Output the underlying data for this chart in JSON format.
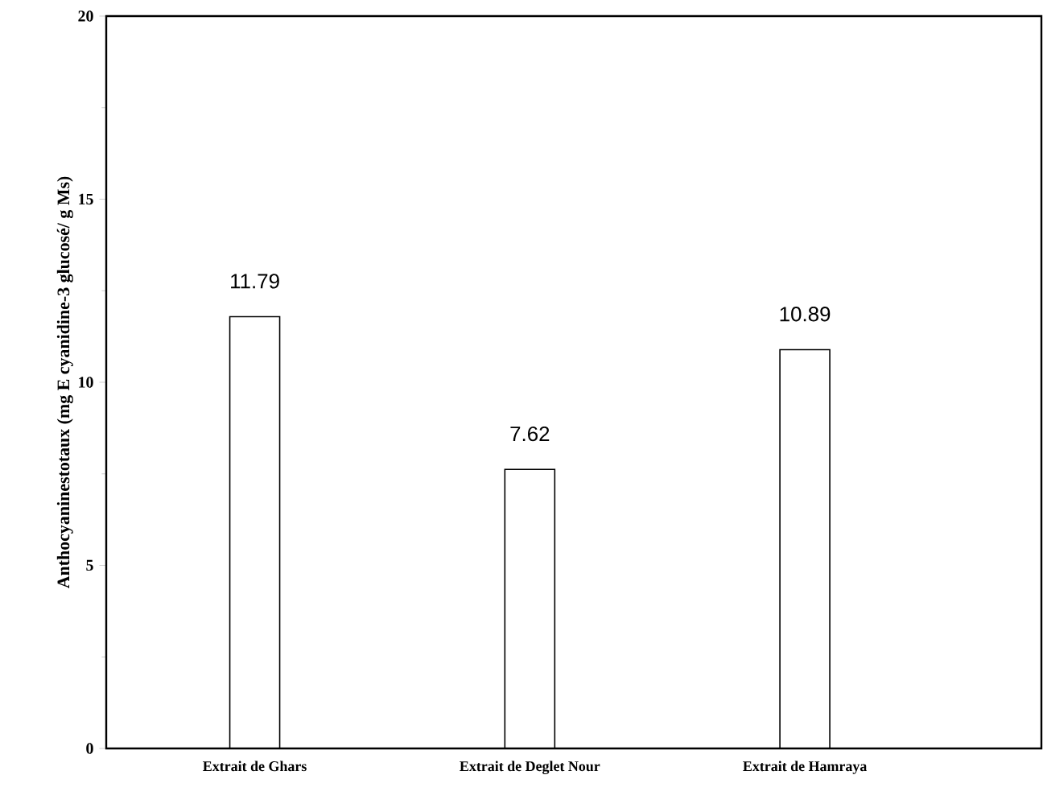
{
  "chart_data": {
    "type": "bar",
    "ylabel": "Anthocyaninestotaux (mg E cyanidine-3 glucosé/ g Ms)",
    "categories": [
      "Extrait de Ghars",
      "Extrait de Deglet Nour",
      "Extrait de Hamraya"
    ],
    "values": [
      11.79,
      7.62,
      10.89
    ],
    "colors": [
      "#000000",
      "#000000",
      "#000000"
    ],
    "ylim": [
      0,
      20
    ],
    "yticks": [
      0,
      5,
      10,
      15,
      20
    ],
    "data_labels": true
  }
}
